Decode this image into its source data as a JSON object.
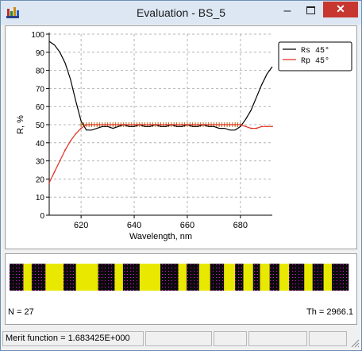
{
  "window": {
    "title": "Evaluation - BS_5",
    "controls": {
      "minimize_glyph": "–",
      "close_glyph": "✕"
    }
  },
  "chart_data": {
    "type": "line",
    "xlabel": "Wavelength, nm",
    "ylabel": "R, %",
    "xlim": [
      608,
      692
    ],
    "ylim": [
      0,
      100
    ],
    "x_ticks": [
      620,
      640,
      660,
      680
    ],
    "y_ticks": [
      0,
      10,
      20,
      30,
      40,
      50,
      60,
      70,
      80,
      90,
      100
    ],
    "grid": true,
    "legend_position": "top-right",
    "series": [
      {
        "name": "Rs 45°",
        "color": "#000000",
        "points": [
          [
            608,
            96
          ],
          [
            610,
            94
          ],
          [
            612,
            90
          ],
          [
            614,
            84
          ],
          [
            616,
            75
          ],
          [
            618,
            63
          ],
          [
            620,
            52
          ],
          [
            622,
            47
          ],
          [
            624,
            47
          ],
          [
            626,
            48
          ],
          [
            628,
            49
          ],
          [
            630,
            49
          ],
          [
            632,
            48
          ],
          [
            634,
            49
          ],
          [
            636,
            50
          ],
          [
            638,
            49
          ],
          [
            640,
            49
          ],
          [
            642,
            50
          ],
          [
            644,
            49
          ],
          [
            646,
            49
          ],
          [
            648,
            50
          ],
          [
            650,
            49
          ],
          [
            652,
            49
          ],
          [
            654,
            50
          ],
          [
            656,
            49
          ],
          [
            658,
            49
          ],
          [
            660,
            50
          ],
          [
            662,
            49
          ],
          [
            664,
            49
          ],
          [
            666,
            50
          ],
          [
            668,
            49
          ],
          [
            670,
            49
          ],
          [
            672,
            48
          ],
          [
            674,
            48
          ],
          [
            676,
            47
          ],
          [
            678,
            47
          ],
          [
            680,
            49
          ],
          [
            682,
            53
          ],
          [
            684,
            58
          ],
          [
            686,
            65
          ],
          [
            688,
            72
          ],
          [
            690,
            78
          ],
          [
            692,
            82
          ]
        ]
      },
      {
        "name": "Rp 45°",
        "color": "#e03020",
        "points": [
          [
            608,
            18
          ],
          [
            610,
            24
          ],
          [
            612,
            30
          ],
          [
            614,
            36
          ],
          [
            616,
            41
          ],
          [
            618,
            45
          ],
          [
            620,
            48
          ],
          [
            622,
            50
          ],
          [
            624,
            50
          ],
          [
            626,
            50
          ],
          [
            628,
            50
          ],
          [
            630,
            50
          ],
          [
            632,
            50
          ],
          [
            634,
            50
          ],
          [
            636,
            50
          ],
          [
            638,
            50
          ],
          [
            640,
            50
          ],
          [
            642,
            50
          ],
          [
            644,
            50
          ],
          [
            646,
            50
          ],
          [
            648,
            50
          ],
          [
            650,
            50
          ],
          [
            652,
            50
          ],
          [
            654,
            50
          ],
          [
            656,
            50
          ],
          [
            658,
            50
          ],
          [
            660,
            50
          ],
          [
            662,
            50
          ],
          [
            664,
            50
          ],
          [
            666,
            50
          ],
          [
            668,
            50
          ],
          [
            670,
            50
          ],
          [
            672,
            50
          ],
          [
            674,
            50
          ],
          [
            676,
            50
          ],
          [
            678,
            50
          ],
          [
            680,
            50
          ],
          [
            682,
            49
          ],
          [
            684,
            48
          ],
          [
            686,
            48
          ],
          [
            688,
            49
          ],
          [
            690,
            49
          ],
          [
            692,
            49
          ]
        ]
      }
    ],
    "target_markers": {
      "x_start": 620,
      "x_end": 680,
      "step": 1,
      "value": 50,
      "color": "#b07020"
    }
  },
  "design": {
    "n_label": "N = 27",
    "th_label": "Th = 2966.1",
    "layers": [
      {
        "material": "H",
        "thickness": 1.0
      },
      {
        "material": "L",
        "thickness": 0.6
      },
      {
        "material": "H",
        "thickness": 1.0
      },
      {
        "material": "L",
        "thickness": 1.3
      },
      {
        "material": "H",
        "thickness": 0.9
      },
      {
        "material": "L",
        "thickness": 1.6
      },
      {
        "material": "H",
        "thickness": 1.2
      },
      {
        "material": "L",
        "thickness": 0.6
      },
      {
        "material": "H",
        "thickness": 1.2
      },
      {
        "material": "L",
        "thickness": 1.5
      },
      {
        "material": "H",
        "thickness": 1.3
      },
      {
        "material": "L",
        "thickness": 0.6
      },
      {
        "material": "H",
        "thickness": 0.9
      },
      {
        "material": "L",
        "thickness": 0.8
      },
      {
        "material": "H",
        "thickness": 1.0
      },
      {
        "material": "L",
        "thickness": 0.8
      },
      {
        "material": "H",
        "thickness": 0.6
      },
      {
        "material": "L",
        "thickness": 0.7
      },
      {
        "material": "H",
        "thickness": 0.5
      },
      {
        "material": "L",
        "thickness": 0.7
      },
      {
        "material": "H",
        "thickness": 0.7
      },
      {
        "material": "L",
        "thickness": 0.7
      },
      {
        "material": "H",
        "thickness": 1.1
      },
      {
        "material": "L",
        "thickness": 0.6
      },
      {
        "material": "H",
        "thickness": 0.8
      },
      {
        "material": "L",
        "thickness": 0.6
      },
      {
        "material": "H",
        "thickness": 1.2
      }
    ],
    "colors": {
      "H": "#0a0a0a",
      "L": "#e8e800",
      "dot": "#ff00ff"
    }
  },
  "status": {
    "merit_label": "Merit function =  1.683425E+000",
    "panels": [
      "",
      "",
      "",
      ""
    ]
  },
  "colors": {
    "close_red": "#c7372f",
    "titlebar": "#dce7f3",
    "grid": "#b4b4b4"
  }
}
